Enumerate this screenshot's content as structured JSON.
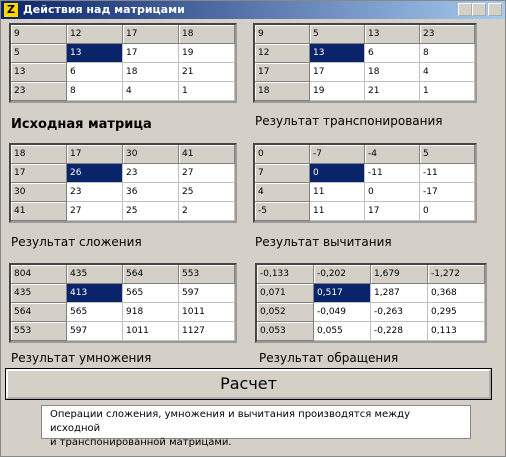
{
  "window": {
    "title": "Действия над матрицами"
  },
  "panels": [
    {
      "label": "Исходная матрица",
      "grid": [
        [
          9,
          12,
          17,
          18
        ],
        [
          5,
          13,
          17,
          19
        ],
        [
          13,
          6,
          18,
          21
        ],
        [
          23,
          8,
          4,
          1
        ]
      ]
    },
    {
      "label": "Результат транспонирования",
      "grid": [
        [
          9,
          5,
          13,
          23
        ],
        [
          12,
          13,
          6,
          8
        ],
        [
          17,
          17,
          18,
          4
        ],
        [
          18,
          19,
          21,
          1
        ]
      ]
    },
    {
      "label": "Результат сложения",
      "grid": [
        [
          18,
          17,
          30,
          41
        ],
        [
          17,
          26,
          23,
          27
        ],
        [
          30,
          23,
          36,
          25
        ],
        [
          41,
          27,
          25,
          2
        ]
      ]
    },
    {
      "label": "Результат вычитания",
      "grid": [
        [
          0,
          -7,
          -4,
          5
        ],
        [
          7,
          0,
          -11,
          -11
        ],
        [
          4,
          11,
          0,
          -17
        ],
        [
          -5,
          11,
          17,
          0
        ]
      ]
    },
    {
      "label": "Результат умножения",
      "grid": [
        [
          804,
          435,
          564,
          553
        ],
        [
          435,
          413,
          565,
          597
        ],
        [
          564,
          565,
          918,
          1011
        ],
        [
          553,
          597,
          1011,
          1127
        ]
      ]
    },
    {
      "label": "Результат обращения",
      "grid": [
        [
          "-0,133",
          "-0,202",
          "1,679",
          "-1,272"
        ],
        [
          "0,071",
          "0,517",
          "1,287",
          "0,368"
        ],
        [
          "0,052",
          "-0,049",
          "-0,263",
          "0,295"
        ],
        [
          "0,053",
          "0,055",
          "-0,228",
          "0,113"
        ]
      ]
    }
  ],
  "button": "Расчет",
  "note": [
    "Операции сложения, умножения и вычитания производятся между исходной",
    "и транспонированной матрицами."
  ]
}
